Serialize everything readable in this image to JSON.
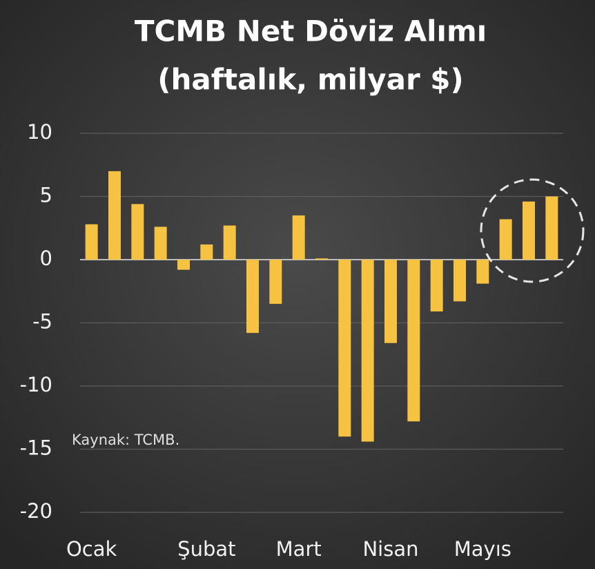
{
  "chart_data": {
    "type": "bar",
    "title": "TCMB Net Döviz Alımı",
    "subtitle": "(haftalık, milyar $)",
    "annotation": "Kaynak: TCMB.",
    "categories": [
      "Ocak",
      null,
      null,
      null,
      null,
      "Şubat",
      null,
      null,
      null,
      "Mart",
      null,
      null,
      null,
      "Nisan",
      null,
      null,
      null,
      "Mayıs",
      null,
      null,
      null
    ],
    "values": [
      2.8,
      7.0,
      4.4,
      2.6,
      -0.8,
      1.2,
      2.7,
      -5.8,
      -3.5,
      3.5,
      0.1,
      -14.0,
      -14.4,
      -6.6,
      -12.8,
      -4.1,
      -3.3,
      -1.9,
      3.2,
      4.6,
      5.0
    ],
    "color": "#f5c242",
    "ylim": [
      -20,
      10
    ],
    "yticks": [
      10,
      5,
      0,
      -5,
      -10,
      -15,
      -20
    ],
    "grid": true
  }
}
